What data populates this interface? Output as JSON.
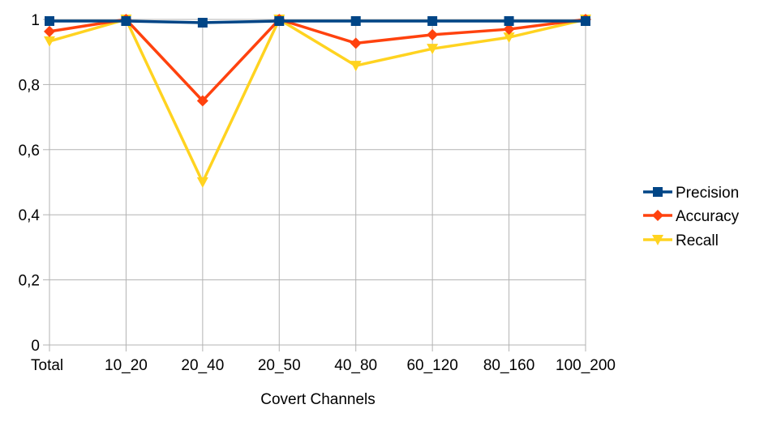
{
  "chart_data": {
    "type": "line",
    "categories": [
      "Total",
      "10_20",
      "20_40",
      "20_50",
      "40_80",
      "60_120",
      "80_160",
      "100_200"
    ],
    "series": [
      {
        "name": "Precision",
        "marker": "square",
        "color": "#004586",
        "values": [
          0.995,
          0.995,
          0.99,
          0.995,
          0.995,
          0.995,
          0.995,
          0.995
        ]
      },
      {
        "name": "Accuracy",
        "marker": "diamond",
        "color": "#ff420e",
        "values": [
          0.963,
          1.0,
          0.75,
          1.0,
          0.927,
          0.953,
          0.97,
          1.0
        ]
      },
      {
        "name": "Recall",
        "marker": "triangle-down",
        "color": "#ffd320",
        "values": [
          0.933,
          1.0,
          0.5,
          1.0,
          0.858,
          0.91,
          0.945,
          1.0
        ]
      }
    ],
    "yticks": [
      "0",
      "0,2",
      "0,4",
      "0,6",
      "0,8",
      "1"
    ],
    "ytick_values": [
      0,
      0.2,
      0.4,
      0.6,
      0.8,
      1.0
    ],
    "title": "",
    "xlabel": "Covert Channels",
    "ylabel": "",
    "ylim": [
      0,
      1
    ],
    "grid": true,
    "legend_position": "right"
  }
}
